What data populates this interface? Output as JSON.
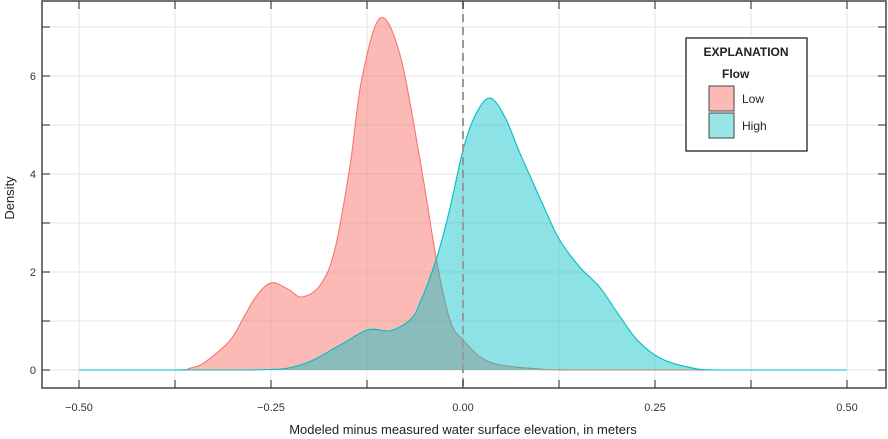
{
  "chart_data": {
    "type": "area",
    "title": "",
    "xlabel": "Modeled minus measured water surface elevation, in meters",
    "ylabel": "Density",
    "xlim": [
      -0.5,
      0.5
    ],
    "ylim": [
      0,
      7.5
    ],
    "xticks": [
      -0.5,
      -0.25,
      0,
      0.25,
      0.5
    ],
    "xtick_labels": [
      "−0.50",
      "−0.25",
      "0.00",
      "0.25",
      "0.50"
    ],
    "yticks": [
      0,
      2,
      4,
      6
    ],
    "ytick_labels": [
      "0",
      "2",
      "4",
      "6"
    ],
    "grid": true,
    "reference_line": {
      "x": 0,
      "style": "dashed"
    },
    "legend": {
      "title": "EXPLANATION",
      "subtitle": "Flow",
      "position": "top-right"
    },
    "series": [
      {
        "name": "Low",
        "color": "#F8766D",
        "x": [
          -0.5,
          -0.375,
          -0.355,
          -0.336,
          -0.303,
          -0.284,
          -0.267,
          -0.249,
          -0.228,
          -0.21,
          -0.186,
          -0.167,
          -0.147,
          -0.132,
          -0.108,
          -0.082,
          -0.056,
          -0.034,
          -0.017,
          0,
          0.035,
          0.1,
          0.152,
          0.5
        ],
        "y": [
          0,
          0,
          0.04,
          0.16,
          0.61,
          1.12,
          1.55,
          1.78,
          1.65,
          1.49,
          1.73,
          2.45,
          4.18,
          5.92,
          7.18,
          6.43,
          4.29,
          2.2,
          1.02,
          0.61,
          0.16,
          0.02,
          0,
          0
        ]
      },
      {
        "name": "High",
        "color": "#00BFC4",
        "x": [
          -0.5,
          -0.277,
          -0.212,
          -0.16,
          -0.124,
          -0.095,
          -0.069,
          -0.056,
          -0.034,
          -0.017,
          0,
          0.016,
          0.035,
          0.055,
          0.074,
          0.109,
          0.126,
          0.152,
          0.178,
          0.204,
          0.227,
          0.257,
          0.296,
          0.335,
          0.5
        ],
        "y": [
          0,
          0,
          0.1,
          0.51,
          0.82,
          0.8,
          1.02,
          1.37,
          2.3,
          3.3,
          4.49,
          5.2,
          5.55,
          5.15,
          4.43,
          3.2,
          2.65,
          2.1,
          1.69,
          1.1,
          0.61,
          0.24,
          0.05,
          0,
          0
        ]
      }
    ]
  }
}
